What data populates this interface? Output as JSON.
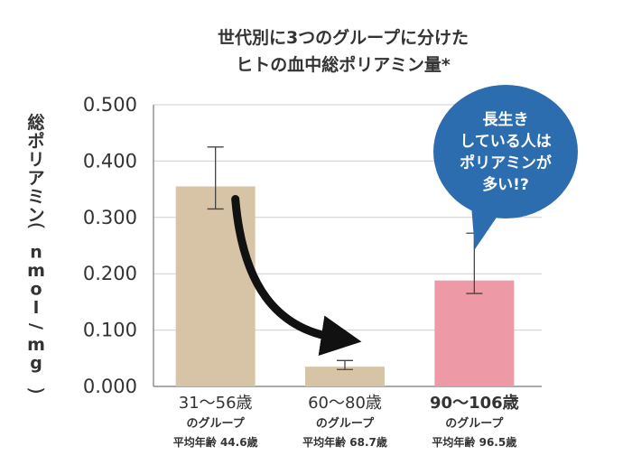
{
  "chart_data": {
    "type": "bar",
    "title_lines": [
      "世代別に3つのグループに分けた",
      "ヒトの血中総ポリアミン量*"
    ],
    "ylabel": "総ポリアミン（nmol/mg）",
    "ylim": [
      0,
      0.5
    ],
    "yticks": [
      "0.000",
      "0.100",
      "0.200",
      "0.300",
      "0.400",
      "0.500"
    ],
    "categories": [
      "31〜56歳",
      "60〜80歳",
      "90〜106歳"
    ],
    "category_sublabels": [
      "のグループ",
      "のグループ",
      "のグループ"
    ],
    "category_ages": [
      "平均年齢 44.6歳",
      "平均年齢 68.7歳",
      "平均年齢 96.5歳"
    ],
    "values": [
      0.355,
      0.035,
      0.188
    ],
    "errors": [
      {
        "low": 0.315,
        "high": 0.425
      },
      {
        "low": 0.03,
        "high": 0.046
      },
      {
        "low": 0.165,
        "high": 0.272
      }
    ],
    "bar_colors": [
      "#D7C3A6",
      "#D7C3A6",
      "#EE9AA6"
    ],
    "highlight_color": "#C2186D",
    "grid": "horizontal",
    "annotation": {
      "lines": [
        "長生き",
        "している人は",
        "ポリアミンが",
        "多い!?"
      ],
      "color": "#2C6DB0",
      "placement": "top-right"
    }
  }
}
